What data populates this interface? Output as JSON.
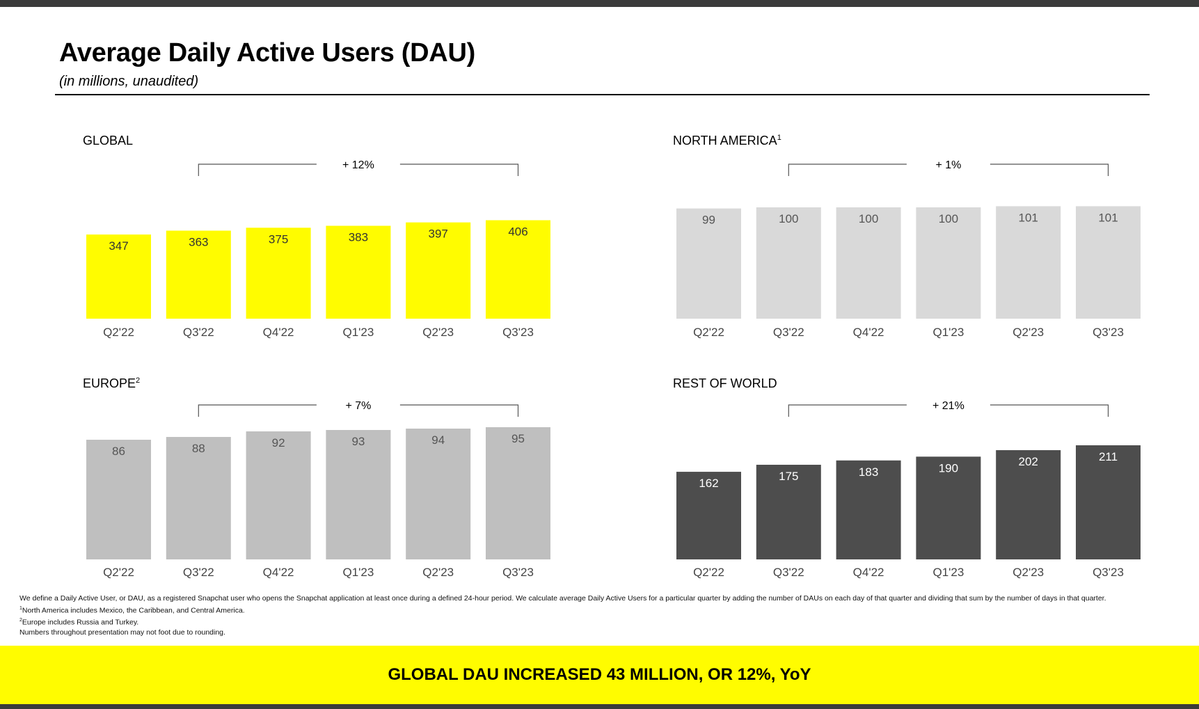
{
  "header": {
    "title": "Average Daily Active Users (DAU)",
    "subtitle": "(in millions, unaudited)"
  },
  "colors": {
    "yellow": "#FFFC00",
    "light_gray": "#D9D9D9",
    "mid_gray": "#BFBFBF",
    "dark_gray": "#4D4D4D"
  },
  "chart_data": [
    {
      "type": "bar",
      "title": "GLOBAL",
      "footnote_mark": "",
      "change_label": "+ 12%",
      "categories": [
        "Q2'22",
        "Q3'22",
        "Q4'22",
        "Q1'23",
        "Q2'23",
        "Q3'23"
      ],
      "values": [
        347,
        363,
        375,
        383,
        397,
        406
      ],
      "value_labels": [
        "347",
        "363",
        "375",
        "383",
        "397",
        "406"
      ],
      "bar_color": "#FFFC00",
      "label_color": "#333333"
    },
    {
      "type": "bar",
      "title": "NORTH AMERICA",
      "footnote_mark": "1",
      "change_label": "+ 1%",
      "categories": [
        "Q2'22",
        "Q3'22",
        "Q4'22",
        "Q1'23",
        "Q2'23",
        "Q3'23"
      ],
      "values": [
        99,
        100,
        100,
        100,
        101,
        101
      ],
      "value_labels": [
        "99",
        "100",
        "100",
        "100",
        "101",
        "101"
      ],
      "bar_color": "#D9D9D9",
      "label_color": "#555555"
    },
    {
      "type": "bar",
      "title": "EUROPE",
      "footnote_mark": "2",
      "change_label": "+ 7%",
      "categories": [
        "Q2'22",
        "Q3'22",
        "Q4'22",
        "Q1'23",
        "Q2'23",
        "Q3'23"
      ],
      "values": [
        86,
        88,
        92,
        93,
        94,
        95
      ],
      "value_labels": [
        "86",
        "88",
        "92",
        "93",
        "94",
        "95"
      ],
      "bar_color": "#BFBFBF",
      "label_color": "#555555"
    },
    {
      "type": "bar",
      "title": "REST OF WORLD",
      "footnote_mark": "",
      "change_label": "+ 21%",
      "categories": [
        "Q2'22",
        "Q3'22",
        "Q4'22",
        "Q1'23",
        "Q2'23",
        "Q3'23"
      ],
      "values": [
        162,
        175,
        183,
        190,
        202,
        211
      ],
      "value_labels": [
        "162",
        "175",
        "183",
        "190",
        "202",
        "211"
      ],
      "bar_color": "#4D4D4D",
      "label_color": "#FFFFFF"
    }
  ],
  "footnotes": {
    "definition": "We define a Daily Active User, or DAU, as a registered Snapchat user who opens the Snapchat application at least once during a defined 24-hour period. We calculate average Daily Active Users for a particular quarter by adding the number of DAUs on each day of that quarter and dividing that sum by the number of days in that quarter.",
    "note1_mark": "1",
    "note1": "North America includes Mexico, the Caribbean, and Central America.",
    "note2_mark": "2",
    "note2": "Europe includes Russia and Turkey.",
    "note3": "Numbers throughout presentation may not foot due to rounding."
  },
  "banner": {
    "text": "GLOBAL DAU INCREASED 43 MILLION, OR 12%, YoY"
  }
}
